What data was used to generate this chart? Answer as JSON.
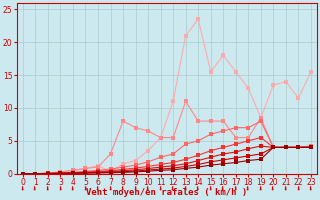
{
  "title": "",
  "xlabel": "Vent moyen/en rafales ( km/h )",
  "ylabel": "",
  "background_color": "#cce9f0",
  "grid_color": "#aacccc",
  "xlim": [
    -0.5,
    23.5
  ],
  "ylim": [
    0,
    26
  ],
  "xticks": [
    0,
    1,
    2,
    3,
    4,
    5,
    6,
    7,
    8,
    9,
    10,
    11,
    12,
    13,
    14,
    15,
    16,
    17,
    18,
    19,
    20,
    21,
    22,
    23
  ],
  "yticks": [
    0,
    5,
    10,
    15,
    20,
    25
  ],
  "lines": [
    {
      "x": [
        0,
        1,
        2,
        3,
        4,
        5,
        6,
        7,
        8,
        9,
        10,
        11,
        12,
        13,
        14,
        15,
        16,
        17,
        18,
        19,
        20,
        21,
        22,
        23
      ],
      "y": [
        0,
        0,
        0,
        0.2,
        0.5,
        0.8,
        1.2,
        0.3,
        1.5,
        2.0,
        3.5,
        5.5,
        11.0,
        21.0,
        23.5,
        15.5,
        18.0,
        15.5,
        13.0,
        8.5,
        13.5,
        14.0,
        11.5,
        15.5
      ],
      "color": "#ffaaaa",
      "marker": "s",
      "markersize": 2.5,
      "linewidth": 0.8
    },
    {
      "x": [
        0,
        1,
        2,
        3,
        4,
        5,
        6,
        7,
        8,
        9,
        10,
        11,
        12,
        13,
        14,
        15,
        16,
        17,
        18,
        19,
        20,
        21,
        22,
        23
      ],
      "y": [
        0,
        0,
        0.1,
        0.3,
        0.5,
        0.8,
        1.0,
        3.0,
        8.0,
        7.0,
        6.5,
        5.5,
        5.5,
        11.0,
        8.0,
        8.0,
        8.0,
        5.5,
        5.5,
        8.5,
        4.0,
        4.0,
        4.0,
        4.0
      ],
      "color": "#ff8888",
      "marker": "s",
      "markersize": 2.5,
      "linewidth": 0.8
    },
    {
      "x": [
        0,
        1,
        2,
        3,
        4,
        5,
        6,
        7,
        8,
        9,
        10,
        11,
        12,
        13,
        14,
        15,
        16,
        17,
        18,
        19,
        20,
        21,
        22,
        23
      ],
      "y": [
        0,
        0,
        0.05,
        0.15,
        0.2,
        0.35,
        0.5,
        0.7,
        1.0,
        1.3,
        1.8,
        2.5,
        3.0,
        4.5,
        5.0,
        6.0,
        6.5,
        7.0,
        7.0,
        8.0,
        4.0,
        4.0,
        4.0,
        4.2
      ],
      "color": "#ff6666",
      "marker": "s",
      "markersize": 2.5,
      "linewidth": 0.8
    },
    {
      "x": [
        0,
        1,
        2,
        3,
        4,
        5,
        6,
        7,
        8,
        9,
        10,
        11,
        12,
        13,
        14,
        15,
        16,
        17,
        18,
        19,
        20,
        21,
        22,
        23
      ],
      "y": [
        0,
        0,
        0.05,
        0.1,
        0.15,
        0.25,
        0.35,
        0.45,
        0.65,
        0.85,
        1.1,
        1.4,
        1.7,
        2.2,
        2.8,
        3.5,
        4.0,
        4.5,
        5.0,
        5.5,
        4.0,
        4.0,
        4.0,
        4.1
      ],
      "color": "#ff3333",
      "marker": "s",
      "markersize": 2.5,
      "linewidth": 0.8
    },
    {
      "x": [
        0,
        1,
        2,
        3,
        4,
        5,
        6,
        7,
        8,
        9,
        10,
        11,
        12,
        13,
        14,
        15,
        16,
        17,
        18,
        19,
        20,
        21,
        22,
        23
      ],
      "y": [
        0,
        0,
        0.03,
        0.08,
        0.1,
        0.18,
        0.25,
        0.32,
        0.45,
        0.58,
        0.78,
        1.0,
        1.2,
        1.5,
        2.0,
        2.5,
        3.0,
        3.3,
        3.8,
        4.2,
        4.0,
        4.0,
        4.0,
        4.0
      ],
      "color": "#dd1111",
      "marker": "s",
      "markersize": 2.5,
      "linewidth": 0.8
    },
    {
      "x": [
        0,
        1,
        2,
        3,
        4,
        5,
        6,
        7,
        8,
        9,
        10,
        11,
        12,
        13,
        14,
        15,
        16,
        17,
        18,
        19,
        20,
        21,
        22,
        23
      ],
      "y": [
        0,
        0,
        0.02,
        0.05,
        0.07,
        0.12,
        0.17,
        0.22,
        0.3,
        0.4,
        0.55,
        0.7,
        0.85,
        1.1,
        1.4,
        1.8,
        2.1,
        2.4,
        2.7,
        3.0,
        4.0,
        4.0,
        4.0,
        4.0
      ],
      "color": "#cc0000",
      "marker": "s",
      "markersize": 2.5,
      "linewidth": 0.8
    },
    {
      "x": [
        0,
        1,
        2,
        3,
        4,
        5,
        6,
        7,
        8,
        9,
        10,
        11,
        12,
        13,
        14,
        15,
        16,
        17,
        18,
        19,
        20,
        21,
        22,
        23
      ],
      "y": [
        0,
        0,
        0.01,
        0.03,
        0.05,
        0.08,
        0.11,
        0.15,
        0.2,
        0.27,
        0.38,
        0.5,
        0.6,
        0.8,
        1.0,
        1.3,
        1.5,
        1.7,
        2.0,
        2.2,
        4.0,
        4.0,
        4.0,
        4.0
      ],
      "color": "#990000",
      "marker": "s",
      "markersize": 2.5,
      "linewidth": 0.8
    }
  ],
  "axis_color": "#cc0000",
  "tick_color": "#cc0000",
  "label_color": "#cc0000",
  "xlabel_fontsize": 6.5,
  "tick_fontsize": 5.5
}
